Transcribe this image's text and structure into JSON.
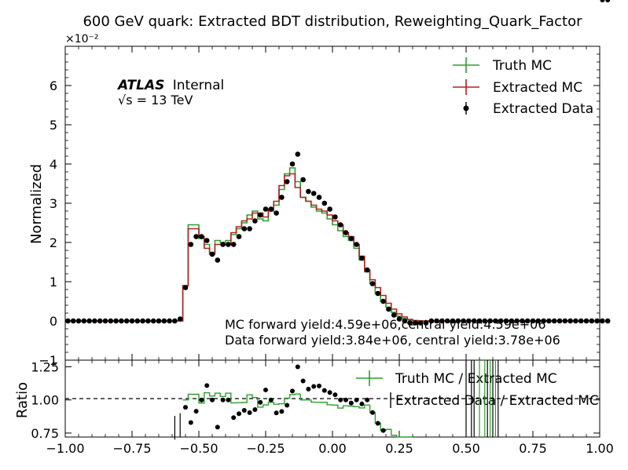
{
  "chart_data": {
    "type": "step",
    "title": "600 GeV quark: Extracted BDT distribution, Reweighting_Quark_Factor",
    "ylabel_main": "Normalized",
    "ylabel_ratio": "Ratio",
    "xlim": [
      -1.0,
      1.0
    ],
    "ylim_main": [
      -0.01,
      0.07
    ],
    "ylim_ratio": [
      0.72,
      1.3
    ],
    "y_scale_label": "×10⁻²",
    "x_ticks": [
      "−1.00",
      "−0.75",
      "−0.50",
      "−0.25",
      "0.00",
      "0.25",
      "0.50",
      "0.75",
      "1.00"
    ],
    "y_ticks_main": [
      "0",
      "1",
      "2",
      "3",
      "4",
      "5",
      "6"
    ],
    "y_ticks_ratio": [
      "0.75",
      "1.00",
      "1.25"
    ],
    "atlas_label": "ATLAS",
    "atlas_status": "Internal",
    "energy_label": "√s = 13 TeV",
    "annotations": [
      "MC forward yield:4.59e+06,central yield:4.59e+06",
      "Data forward yield:3.84e+06, central yield:3.78e+06"
    ],
    "legend_main": [
      "Truth MC",
      "Extracted MC",
      "Extracted Data"
    ],
    "legend_ratio": [
      "Truth MC / Extracted MC",
      "Extracted Data / Extracted MC"
    ],
    "colors": {
      "truth": "#2ca02c",
      "extracted": "#b22222",
      "data": "#000000"
    },
    "bin_edges_start": -1.0,
    "bin_width": 0.02,
    "truth_mc": [
      0,
      0,
      0,
      0,
      0,
      0,
      0,
      0,
      0,
      0,
      0,
      0,
      0,
      0,
      0,
      0,
      0,
      0,
      0,
      0,
      0,
      0,
      0.009,
      0.0245,
      0.0245,
      0.021,
      0.0195,
      0.0175,
      0.0205,
      0.02,
      0.0205,
      0.022,
      0.0235,
      0.025,
      0.027,
      0.028,
      0.026,
      0.0255,
      0.028,
      0.0295,
      0.0335,
      0.0375,
      0.039,
      0.0355,
      0.0315,
      0.0305,
      0.029,
      0.028,
      0.0275,
      0.026,
      0.0245,
      0.023,
      0.0215,
      0.0205,
      0.0185,
      0.0155,
      0.0125,
      0.0095,
      0.007,
      0.005,
      0.0035,
      0.0022,
      0.0012,
      0.0006,
      0.0002,
      0.0001,
      0,
      0,
      0,
      0,
      0,
      0,
      0,
      0,
      0,
      0,
      0,
      0,
      0,
      0,
      0,
      0,
      0,
      0,
      0,
      0,
      0,
      0,
      0,
      0,
      0,
      0,
      0,
      0,
      0,
      0,
      0,
      0,
      0,
      0
    ],
    "extracted_mc": [
      0,
      0,
      0,
      0,
      0,
      0,
      0,
      0,
      0,
      0,
      0,
      0,
      0,
      0,
      0,
      0,
      0,
      0,
      0,
      0,
      0,
      0,
      0.009,
      0.0235,
      0.0235,
      0.0215,
      0.0185,
      0.017,
      0.0195,
      0.0195,
      0.0195,
      0.0225,
      0.024,
      0.0255,
      0.026,
      0.0275,
      0.0275,
      0.0265,
      0.0285,
      0.0305,
      0.0345,
      0.037,
      0.0375,
      0.034,
      0.0315,
      0.0305,
      0.0295,
      0.0285,
      0.028,
      0.027,
      0.0255,
      0.0245,
      0.0225,
      0.0215,
      0.0195,
      0.0165,
      0.013,
      0.0105,
      0.0085,
      0.0065,
      0.0045,
      0.003,
      0.0018,
      0.001,
      0.0004,
      0.0001,
      0,
      0,
      0,
      0,
      0,
      0,
      0,
      0,
      0,
      0,
      0,
      0,
      0,
      0,
      0,
      0,
      0,
      0,
      0,
      0,
      0,
      0,
      0,
      0,
      0,
      0,
      0,
      0,
      0,
      0,
      0,
      0,
      0,
      0
    ],
    "extracted_data": [
      0,
      0,
      0,
      0,
      0,
      0,
      0,
      0,
      0,
      0,
      0,
      0,
      0,
      0,
      0,
      0,
      0,
      0,
      0,
      0,
      0,
      0.0005,
      0.0085,
      0.0195,
      0.0215,
      0.0215,
      0.0205,
      0.017,
      0.0155,
      0.0195,
      0.0195,
      0.0195,
      0.0215,
      0.0235,
      0.0235,
      0.0255,
      0.027,
      0.0285,
      0.0285,
      0.0275,
      0.0315,
      0.0355,
      0.04,
      0.0425,
      0.036,
      0.033,
      0.0325,
      0.0315,
      0.03,
      0.0285,
      0.0265,
      0.0245,
      0.0225,
      0.021,
      0.0195,
      0.016,
      0.013,
      0.0095,
      0.007,
      0.005,
      0.003,
      0.0015,
      0.0005,
      0,
      -0.0005,
      -0.0005,
      -0.0005,
      -0.0005,
      0,
      0,
      0,
      0,
      0,
      0,
      0,
      0,
      0,
      0,
      0,
      0,
      0,
      0,
      0,
      0,
      0,
      0,
      0,
      0,
      0,
      0,
      0,
      0,
      0,
      0,
      0,
      0,
      0,
      0,
      0,
      0,
      0,
      0
    ]
  }
}
